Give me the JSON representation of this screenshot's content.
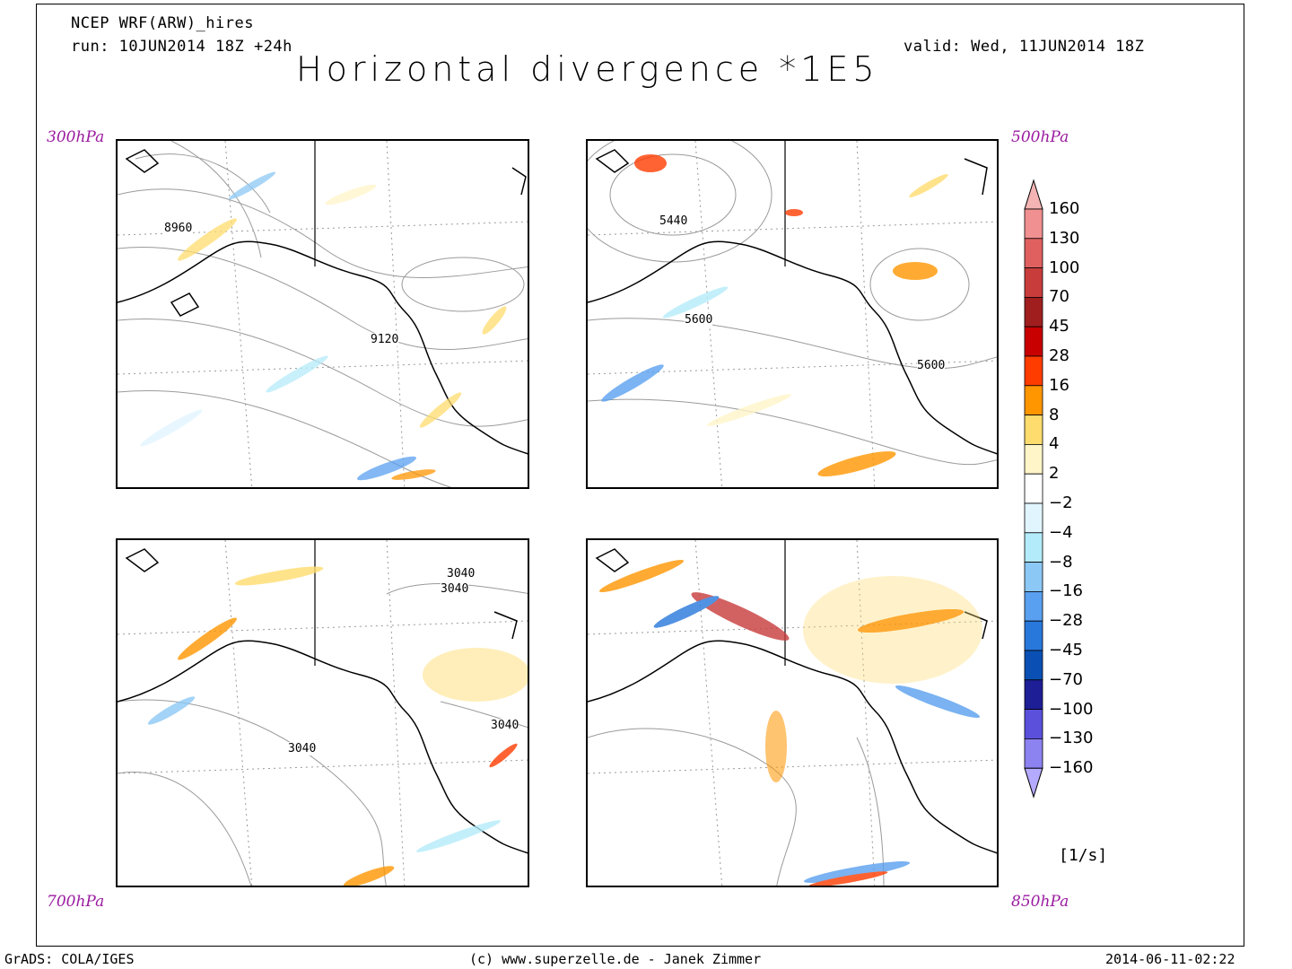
{
  "header": {
    "model": "NCEP WRF(ARW)_hires",
    "run": "run: 10JUN2014 18Z +24h",
    "valid": "valid: Wed, 11JUN2014 18Z",
    "title": "Horizontal divergence *1E5"
  },
  "panels": [
    {
      "level": "300hPa",
      "contour_labels": [
        "8960",
        "9120"
      ]
    },
    {
      "level": "500hPa",
      "contour_labels": [
        "5440",
        "5600",
        "5600"
      ]
    },
    {
      "level": "700hPa",
      "contour_labels": [
        "3040",
        "3040",
        "3040",
        "3040"
      ]
    },
    {
      "level": "850hPa",
      "contour_labels": []
    }
  ],
  "colorbar": {
    "labels": [
      "160",
      "130",
      "100",
      "70",
      "45",
      "28",
      "16",
      "8",
      "4",
      "2",
      "−2",
      "−4",
      "−8",
      "−16",
      "−28",
      "−45",
      "−70",
      "−100",
      "−130",
      "−160"
    ],
    "colors": [
      "#f5b4b4",
      "#f09090",
      "#e06060",
      "#c83c3c",
      "#a01e1e",
      "#c80000",
      "#ff3c00",
      "#ff9600",
      "#ffdc6e",
      "#fff5c8",
      "#ffffff",
      "#e1f5ff",
      "#b4ebfa",
      "#8cc8f5",
      "#5aa0f0",
      "#2878dc",
      "#0a50b4",
      "#1e1e96",
      "#5a50dc",
      "#8c82f0",
      "#b4aaff"
    ],
    "unit": "[1/s]"
  },
  "footer": {
    "left": "GrADS: COLA/IGES",
    "center": "(c) www.superzelle.de - Janek Zimmer",
    "right": "2014-06-11-02:22"
  }
}
